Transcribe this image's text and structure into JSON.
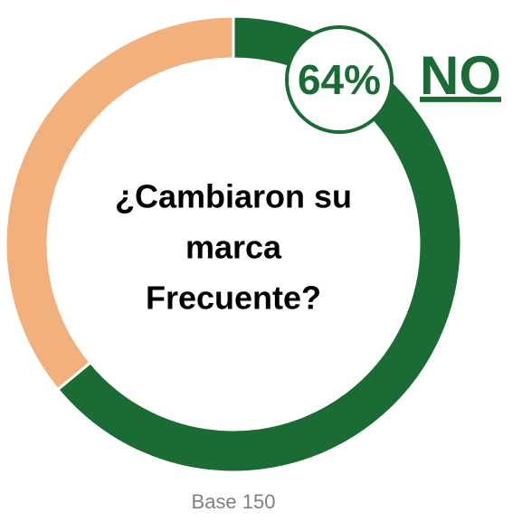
{
  "chart_data": {
    "type": "donut",
    "title": [
      "¿Cambiaron su",
      "marca",
      "Frecuente?"
    ],
    "categories": [
      "NO",
      null
    ],
    "values": [
      64,
      36
    ],
    "value_labels": [
      "64%",
      null
    ],
    "colors": [
      "#1b6b34",
      "#f1b07c"
    ],
    "note": "Base 150"
  }
}
